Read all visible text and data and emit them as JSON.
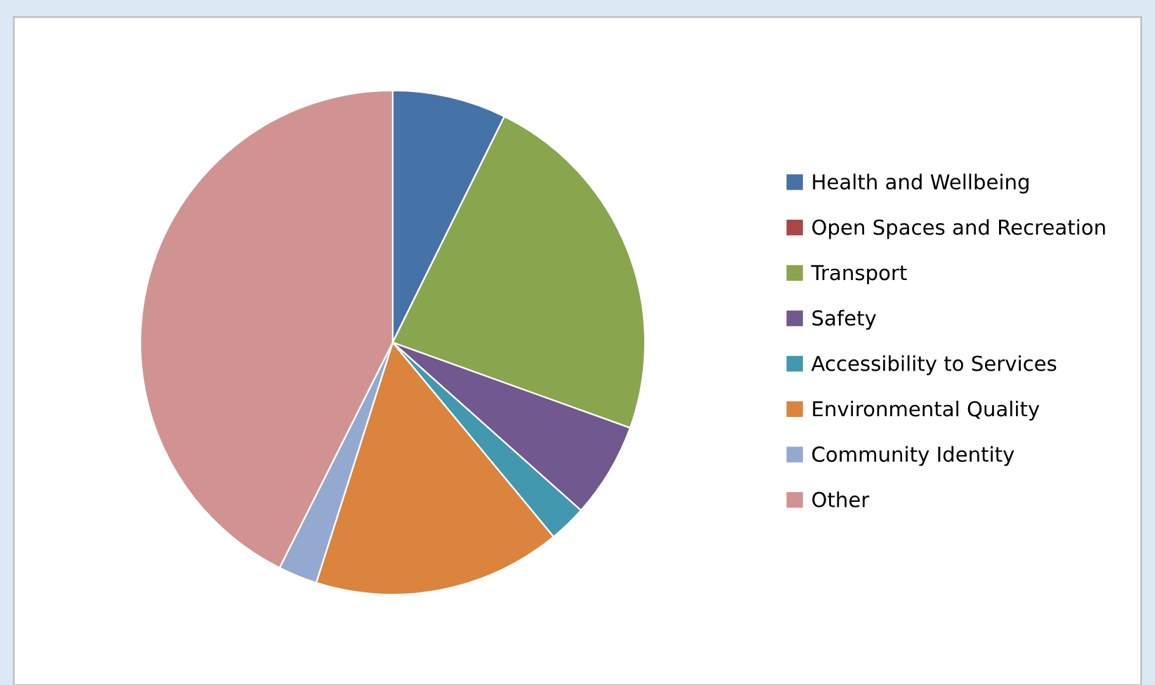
{
  "chart_data": {
    "type": "pie",
    "categories": [
      "Health and Wellbeing",
      "Open Spaces and Recreation",
      "Transport",
      "Safety",
      "Accessibility to Services",
      "Environmental Quality",
      "Community Identity",
      "Other"
    ],
    "values": [
      7.3,
      0,
      23.2,
      6.1,
      2.4,
      15.9,
      2.5,
      42.6
    ],
    "colors": [
      "#4572a7",
      "#aa4643",
      "#89a54e",
      "#71588f",
      "#4198af",
      "#db843d",
      "#93a9cf",
      "#d19392"
    ],
    "legend": "right"
  }
}
